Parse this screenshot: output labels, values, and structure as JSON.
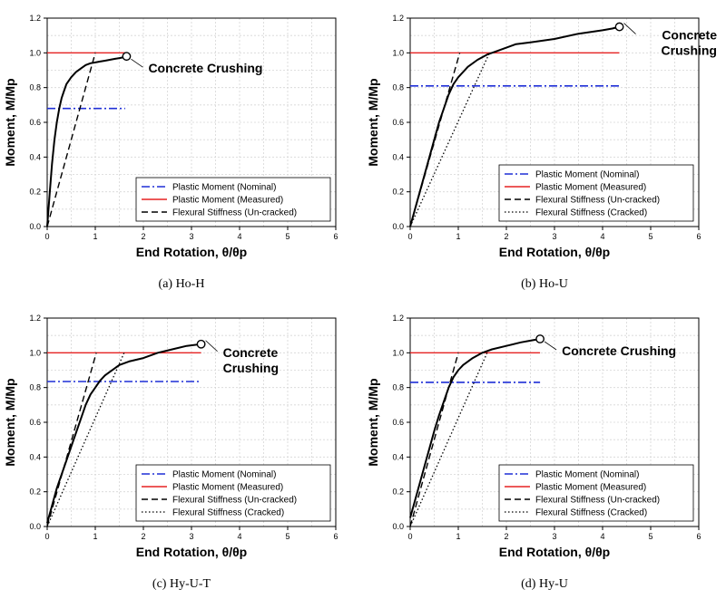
{
  "colors": {
    "nominal": "#1f2fd6",
    "measured": "#e52222",
    "measured_curve": "#000000",
    "stiffness": "#000000"
  },
  "chart_data": [
    {
      "type": "line",
      "caption": "(a)  Ho-H",
      "xlabel": "End Rotation, θ/θp",
      "ylabel": "Moment, M/Mp",
      "xlim": [
        0,
        6
      ],
      "ylim": [
        0,
        1.2
      ],
      "xticks": [
        "0",
        "1",
        "2",
        "3",
        "4",
        "5",
        "6"
      ],
      "yticks": [
        "0.0",
        "0.2",
        "0.4",
        "0.6",
        "0.8",
        "1.0",
        "1.2"
      ],
      "grid": true,
      "legend_position": "bottom-right",
      "annotation": {
        "lines": [
          "Concrete Crushing"
        ],
        "x": 1.65,
        "y": 0.98
      },
      "series": [
        {
          "name": "Plastic Moment (Nominal)",
          "style": "dashdot",
          "color": "#1f2fd6",
          "x": [
            0,
            1.62
          ],
          "y": [
            0.68,
            0.68
          ]
        },
        {
          "name": "Plastic Moment (Measured)",
          "style": "solid",
          "color": "#e52222",
          "x": [
            0,
            1.62
          ],
          "y": [
            1.0,
            1.0
          ]
        },
        {
          "name": "Flexural Stiffness (Un-cracked)",
          "style": "dashed",
          "color": "#000000",
          "x": [
            0,
            1.0
          ],
          "y": [
            0,
            1.0
          ]
        },
        {
          "name": "",
          "style": "measured",
          "color": "#000000",
          "x": [
            0,
            0.05,
            0.1,
            0.15,
            0.2,
            0.25,
            0.3,
            0.35,
            0.4,
            0.5,
            0.6,
            0.7,
            0.8,
            0.9,
            1.0,
            1.1,
            1.2,
            1.3,
            1.4,
            1.5,
            1.6,
            1.65
          ],
          "y": [
            0,
            0.18,
            0.36,
            0.5,
            0.6,
            0.68,
            0.74,
            0.78,
            0.82,
            0.86,
            0.89,
            0.91,
            0.93,
            0.94,
            0.945,
            0.95,
            0.955,
            0.96,
            0.965,
            0.97,
            0.975,
            0.98
          ]
        }
      ]
    },
    {
      "type": "line",
      "caption": "(b)  Ho-U",
      "xlabel": "End Rotation, θ/θp",
      "ylabel": "Moment, M/Mp",
      "xlim": [
        0,
        6
      ],
      "ylim": [
        0,
        1.2
      ],
      "xticks": [
        "0",
        "1",
        "2",
        "3",
        "4",
        "5",
        "6"
      ],
      "yticks": [
        "0.0",
        "0.2",
        "0.4",
        "0.6",
        "0.8",
        "1.0",
        "1.2"
      ],
      "grid": true,
      "legend_position": "bottom-right",
      "annotation": {
        "lines": [
          "Concrete",
          "Crushing"
        ],
        "x": 4.35,
        "y": 1.15
      },
      "series": [
        {
          "name": "Plastic Moment (Nominal)",
          "style": "dashdot",
          "color": "#1f2fd6",
          "x": [
            0,
            4.35
          ],
          "y": [
            0.81,
            0.81
          ]
        },
        {
          "name": "Plastic Moment (Measured)",
          "style": "solid",
          "color": "#e52222",
          "x": [
            0,
            4.35
          ],
          "y": [
            1.0,
            1.0
          ]
        },
        {
          "name": "Flexural Stiffness (Un-cracked)",
          "style": "dashed",
          "color": "#000000",
          "x": [
            0,
            1.03
          ],
          "y": [
            0,
            1.0
          ]
        },
        {
          "name": "Flexural Stiffness (Cracked)",
          "style": "dotted",
          "color": "#000000",
          "x": [
            0,
            1.65
          ],
          "y": [
            0,
            1.0
          ]
        },
        {
          "name": "",
          "style": "measured",
          "color": "#000000",
          "x": [
            0,
            0.1,
            0.2,
            0.3,
            0.4,
            0.5,
            0.6,
            0.7,
            0.8,
            0.9,
            1.0,
            1.2,
            1.4,
            1.6,
            1.8,
            2.0,
            2.2,
            2.5,
            3.0,
            3.5,
            4.0,
            4.2,
            4.35
          ],
          "y": [
            0,
            0.1,
            0.2,
            0.3,
            0.4,
            0.5,
            0.6,
            0.68,
            0.76,
            0.82,
            0.86,
            0.92,
            0.96,
            0.99,
            1.01,
            1.03,
            1.05,
            1.06,
            1.08,
            1.11,
            1.13,
            1.14,
            1.15
          ]
        }
      ]
    },
    {
      "type": "line",
      "caption": "(c)  Hy-U-T",
      "xlabel": "End Rotation, θ/θp",
      "ylabel": "Moment, M/Mp",
      "xlim": [
        0,
        6
      ],
      "ylim": [
        0,
        1.2
      ],
      "xticks": [
        "0",
        "1",
        "2",
        "3",
        "4",
        "5",
        "6"
      ],
      "yticks": [
        "0.0",
        "0.2",
        "0.4",
        "0.6",
        "0.8",
        "1.0",
        "1.2"
      ],
      "grid": true,
      "legend_position": "bottom-right",
      "annotation": {
        "lines": [
          "Concrete",
          "Crushing"
        ],
        "x": 3.2,
        "y": 1.05
      },
      "series": [
        {
          "name": "Plastic Moment (Nominal)",
          "style": "dashdot",
          "color": "#1f2fd6",
          "x": [
            0,
            3.15
          ],
          "y": [
            0.835,
            0.835
          ]
        },
        {
          "name": "Plastic Moment (Measured)",
          "style": "solid",
          "color": "#e52222",
          "x": [
            0,
            3.2
          ],
          "y": [
            1.0,
            1.0
          ]
        },
        {
          "name": "Flexural Stiffness (Un-cracked)",
          "style": "dashed",
          "color": "#000000",
          "x": [
            0,
            1.02
          ],
          "y": [
            0,
            1.0
          ]
        },
        {
          "name": "Flexural Stiffness (Cracked)",
          "style": "dotted",
          "color": "#000000",
          "x": [
            0,
            1.6
          ],
          "y": [
            0,
            1.0
          ]
        },
        {
          "name": "",
          "style": "measured",
          "color": "#000000",
          "x": [
            0,
            0.1,
            0.2,
            0.3,
            0.4,
            0.5,
            0.6,
            0.7,
            0.8,
            0.9,
            1.0,
            1.1,
            1.2,
            1.3,
            1.5,
            1.7,
            2.0,
            2.3,
            2.6,
            2.9,
            3.2
          ],
          "y": [
            0.02,
            0.12,
            0.22,
            0.3,
            0.38,
            0.46,
            0.54,
            0.62,
            0.7,
            0.76,
            0.8,
            0.84,
            0.87,
            0.89,
            0.93,
            0.95,
            0.97,
            1.0,
            1.02,
            1.04,
            1.05
          ]
        }
      ]
    },
    {
      "type": "line",
      "caption": "(d)  Hy-U",
      "xlabel": "End Rotation, θ/θp",
      "ylabel": "Moment, M/Mp",
      "xlim": [
        0,
        6
      ],
      "ylim": [
        0,
        1.2
      ],
      "xticks": [
        "0",
        "1",
        "2",
        "3",
        "4",
        "5",
        "6"
      ],
      "yticks": [
        "0.0",
        "0.2",
        "0.4",
        "0.6",
        "0.8",
        "1.0",
        "1.2"
      ],
      "grid": true,
      "legend_position": "bottom-right",
      "annotation": {
        "lines": [
          "Concrete Crushing"
        ],
        "x": 2.7,
        "y": 1.08
      },
      "series": [
        {
          "name": "Plastic Moment (Nominal)",
          "style": "dashdot",
          "color": "#1f2fd6",
          "x": [
            0,
            2.7
          ],
          "y": [
            0.83,
            0.83
          ]
        },
        {
          "name": "Plastic Moment (Measured)",
          "style": "solid",
          "color": "#e52222",
          "x": [
            0,
            2.7
          ],
          "y": [
            1.0,
            1.0
          ]
        },
        {
          "name": "Flexural Stiffness (Un-cracked)",
          "style": "dashed",
          "color": "#000000",
          "x": [
            0,
            1.0
          ],
          "y": [
            0,
            1.0
          ]
        },
        {
          "name": "Flexural Stiffness (Cracked)",
          "style": "dotted",
          "color": "#000000",
          "x": [
            0,
            1.6
          ],
          "y": [
            0,
            1.0
          ]
        },
        {
          "name": "",
          "style": "measured",
          "color": "#000000",
          "x": [
            0,
            0.1,
            0.2,
            0.3,
            0.4,
            0.5,
            0.6,
            0.7,
            0.8,
            0.9,
            1.0,
            1.1,
            1.2,
            1.3,
            1.5,
            1.7,
            2.0,
            2.3,
            2.5,
            2.7
          ],
          "y": [
            0.05,
            0.15,
            0.25,
            0.35,
            0.45,
            0.55,
            0.64,
            0.72,
            0.8,
            0.86,
            0.9,
            0.93,
            0.95,
            0.97,
            1.0,
            1.02,
            1.04,
            1.06,
            1.07,
            1.08
          ]
        }
      ]
    }
  ]
}
